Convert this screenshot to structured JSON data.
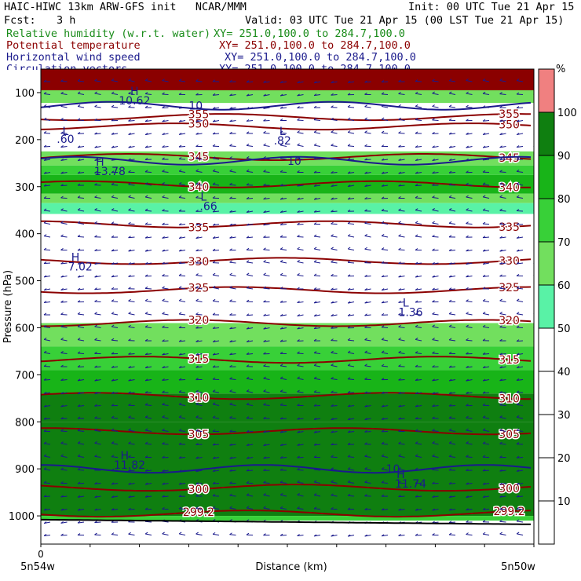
{
  "header": {
    "title": "HAIC-HIWC 13km ARW-GFS init   NCAR/MMM",
    "init": "Init: 00 UTC Tue 21 Apr 15",
    "fcst_label": "Fcst:",
    "fcst_value": "3 h",
    "valid": "Valid: 03 UTC Tue 21 Apr 15 (00 LST Tue 21 Apr 15)",
    "fields": [
      {
        "name": "Relative humidity (w.r.t. water)",
        "xy": "XY= 251.0,100.0 to 284.7,100.0",
        "color": "#1a8c1a"
      },
      {
        "name": "Potential temperature",
        "xy": "XY= 251.0,100.0 to 284.7,100.0",
        "color": "#8b0000"
      },
      {
        "name": "Horizontal wind speed",
        "xy": "XY= 251.0,100.0 to 284.7,100.0",
        "color": "#1a1a8c"
      },
      {
        "name": "Circulation vectors",
        "xy": "XY= 251.0,100.0 to 284.7,100.0",
        "color": "#1a1a8c"
      }
    ]
  },
  "chart_data": {
    "type": "heatmap",
    "xlabel": "Distance (km)",
    "ylabel": "Pressure (hPa)",
    "x_ticks": [
      "0"
    ],
    "x_end_labels": [
      "5n54w",
      "5n50w"
    ],
    "y_ticks": [
      100,
      200,
      300,
      400,
      500,
      600,
      700,
      800,
      900,
      1000
    ],
    "ylim": [
      1060,
      50
    ],
    "colorbar": {
      "unit": "%",
      "ticks": [
        10,
        20,
        30,
        40,
        50,
        60,
        70,
        80,
        90,
        100
      ],
      "bins": [
        {
          "range": [
            50,
            60
          ],
          "color": "#59f2a6"
        },
        {
          "range": [
            60,
            70
          ],
          "color": "#72df5e"
        },
        {
          "range": [
            70,
            80
          ],
          "color": "#38d038"
        },
        {
          "range": [
            80,
            90
          ],
          "color": "#18b418"
        },
        {
          "range": [
            90,
            100
          ],
          "color": "#0f7f10"
        },
        {
          "range": [
            100,
            110
          ],
          "color": "#f08080"
        }
      ]
    },
    "rh_layers": [
      {
        "p_top": 72,
        "p_bot": 95,
        "rh": 100
      },
      {
        "p_top": 95,
        "p_bot": 122,
        "rh": 60
      },
      {
        "p_top": 225,
        "p_bot": 255,
        "rh": 60
      },
      {
        "p_top": 255,
        "p_bot": 275,
        "rh": 70
      },
      {
        "p_top": 275,
        "p_bot": 315,
        "rh": 80
      },
      {
        "p_top": 315,
        "p_bot": 335,
        "rh": 60
      },
      {
        "p_top": 335,
        "p_bot": 358,
        "rh": 50
      },
      {
        "p_top": 590,
        "p_bot": 640,
        "rh": 60
      },
      {
        "p_top": 640,
        "p_bot": 690,
        "rh": 70
      },
      {
        "p_top": 690,
        "p_bot": 740,
        "rh": 80
      },
      {
        "p_top": 740,
        "p_bot": 800,
        "rh": 90
      },
      {
        "p_top": 800,
        "p_bot": 1000,
        "rh": 90
      },
      {
        "p_top": 1000,
        "p_bot": 1010,
        "rh": 70
      }
    ],
    "theta_contours": [
      {
        "label": "355",
        "p": 152
      },
      {
        "label": "350",
        "p": 172
      },
      {
        "label": "345",
        "p": 237
      },
      {
        "label": "340",
        "p": 295
      },
      {
        "label": "335",
        "p": 380
      },
      {
        "label": "330",
        "p": 458
      },
      {
        "label": "325",
        "p": 520
      },
      {
        "label": "320",
        "p": 590
      },
      {
        "label": "315",
        "p": 668
      },
      {
        "label": "310",
        "p": 745
      },
      {
        "label": "305",
        "p": 820
      },
      {
        "label": "300",
        "p": 940
      },
      {
        "label": "299.2",
        "p": 995
      }
    ],
    "wind_contours": [
      {
        "label": "10",
        "p": 128
      },
      {
        "label": "10",
        "p": 245
      },
      {
        "label": "10",
        "p": 900
      }
    ],
    "annotations": [
      {
        "text": "H",
        "x": 0.19,
        "p": 105
      },
      {
        "text": "10.62",
        "x": 0.19,
        "p": 125
      },
      {
        "text": "L",
        "x": 0.05,
        "p": 190
      },
      {
        "text": ".60",
        "x": 0.05,
        "p": 207
      },
      {
        "text": "L",
        "x": 0.49,
        "p": 190
      },
      {
        "text": ".82",
        "x": 0.49,
        "p": 210
      },
      {
        "text": "H",
        "x": 0.12,
        "p": 255
      },
      {
        "text": "13.78",
        "x": 0.14,
        "p": 275
      },
      {
        "text": "L",
        "x": 0.33,
        "p": 330
      },
      {
        "text": ".66",
        "x": 0.34,
        "p": 350
      },
      {
        "text": "H",
        "x": 0.07,
        "p": 458
      },
      {
        "text": "7.02",
        "x": 0.08,
        "p": 478
      },
      {
        "text": "L",
        "x": 0.74,
        "p": 555
      },
      {
        "text": "1.36",
        "x": 0.75,
        "p": 575
      },
      {
        "text": "H",
        "x": 0.17,
        "p": 880
      },
      {
        "text": "11.82",
        "x": 0.18,
        "p": 900
      },
      {
        "text": "H",
        "x": 0.73,
        "p": 920
      },
      {
        "text": "11.74",
        "x": 0.75,
        "p": 940
      }
    ]
  }
}
